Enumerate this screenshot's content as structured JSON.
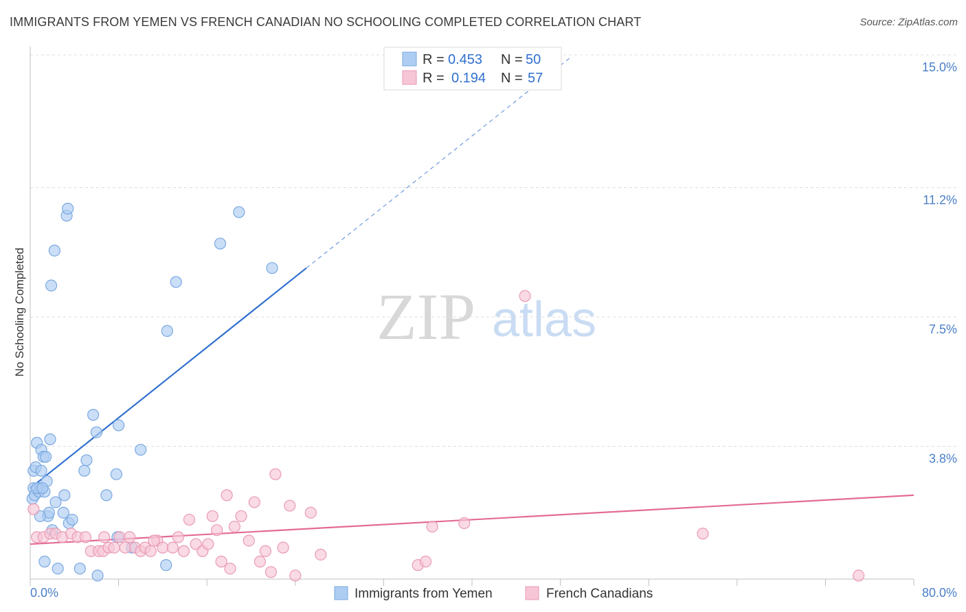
{
  "title": "IMMIGRANTS FROM YEMEN VS FRENCH CANADIAN NO SCHOOLING COMPLETED CORRELATION CHART",
  "source": "Source: ZipAtlas.com",
  "watermark": {
    "zip": "ZIP",
    "atlas": "atlas"
  },
  "colors": {
    "blue_fill": "#aecdf2",
    "blue_stroke": "#7aa8e0",
    "blue_line": "#2f6fd0",
    "pink_fill": "#f7c6d6",
    "pink_stroke": "#e89ab4",
    "pink_line": "#e46a95",
    "axis_text": "#4a7fc8",
    "grid": "#dcdcdc"
  },
  "legend_top": [
    {
      "r_label": "R =",
      "r_value": "0.453",
      "n_label": "N =",
      "n_value": "50"
    },
    {
      "r_label": "R =",
      "r_value": "0.194",
      "n_label": "N =",
      "n_value": "57"
    }
  ],
  "chart_data": {
    "type": "scatter",
    "title": "IMMIGRANTS FROM YEMEN VS FRENCH CANADIAN NO SCHOOLING COMPLETED CORRELATION CHART",
    "xlabel": "",
    "ylabel": "No Schooling Completed",
    "xlim": [
      0,
      80
    ],
    "ylim": [
      0,
      15.0
    ],
    "x_tick_labels": [
      "0.0%",
      "80.0%"
    ],
    "y_ticks": [
      3.8,
      7.5,
      11.2,
      15.0
    ],
    "y_tick_labels": [
      "3.8%",
      "7.5%",
      "11.2%",
      "15.0%"
    ],
    "grid": true,
    "legend_position": "top-center and bottom",
    "series": [
      {
        "name": "Immigrants from Yemen",
        "color": "blue",
        "trend": {
          "x0": 0,
          "y0": 2.6,
          "x1": 25,
          "y1": 8.9,
          "dashed_to_x": 49
        },
        "points": [
          [
            0.2,
            2.3
          ],
          [
            0.3,
            3.1
          ],
          [
            0.3,
            2.6
          ],
          [
            0.4,
            2.4
          ],
          [
            0.5,
            3.2
          ],
          [
            0.6,
            3.9
          ],
          [
            0.8,
            2.5
          ],
          [
            0.9,
            2.6
          ],
          [
            1.0,
            3.7
          ],
          [
            1.0,
            3.1
          ],
          [
            1.2,
            3.5
          ],
          [
            1.3,
            2.5
          ],
          [
            1.4,
            3.5
          ],
          [
            1.5,
            2.8
          ],
          [
            1.6,
            1.8
          ],
          [
            1.7,
            1.9
          ],
          [
            1.8,
            4.0
          ],
          [
            1.9,
            8.4
          ],
          [
            2.0,
            1.4
          ],
          [
            2.2,
            9.4
          ],
          [
            2.3,
            2.2
          ],
          [
            2.5,
            0.3
          ],
          [
            3.0,
            1.9
          ],
          [
            3.1,
            2.4
          ],
          [
            3.3,
            10.4
          ],
          [
            3.4,
            10.6
          ],
          [
            3.5,
            1.6
          ],
          [
            3.8,
            1.7
          ],
          [
            4.5,
            0.3
          ],
          [
            4.9,
            3.1
          ],
          [
            5.1,
            3.4
          ],
          [
            5.7,
            4.7
          ],
          [
            6.0,
            4.2
          ],
          [
            6.1,
            0.1
          ],
          [
            6.9,
            2.4
          ],
          [
            7.8,
            3.0
          ],
          [
            7.9,
            1.2
          ],
          [
            8.0,
            4.4
          ],
          [
            9.2,
            0.9
          ],
          [
            10.0,
            3.7
          ],
          [
            12.3,
            0.4
          ],
          [
            12.4,
            7.1
          ],
          [
            13.2,
            8.5
          ],
          [
            17.2,
            9.6
          ],
          [
            18.9,
            10.5
          ],
          [
            21.9,
            8.9
          ],
          [
            0.6,
            2.6
          ],
          [
            1.1,
            2.6
          ],
          [
            1.3,
            0.5
          ],
          [
            0.9,
            1.8
          ]
        ]
      },
      {
        "name": "French Canadians",
        "color": "pink",
        "trend": {
          "x0": 0,
          "y0": 1.0,
          "x1": 80,
          "y1": 2.4
        },
        "points": [
          [
            0.3,
            2.0
          ],
          [
            0.6,
            1.2
          ],
          [
            1.2,
            1.2
          ],
          [
            1.8,
            1.3
          ],
          [
            2.3,
            1.3
          ],
          [
            2.9,
            1.2
          ],
          [
            3.7,
            1.3
          ],
          [
            4.3,
            1.2
          ],
          [
            5.0,
            1.2
          ],
          [
            5.5,
            0.8
          ],
          [
            6.2,
            0.8
          ],
          [
            6.6,
            0.8
          ],
          [
            7.1,
            0.9
          ],
          [
            7.6,
            0.9
          ],
          [
            8.1,
            1.2
          ],
          [
            8.6,
            0.9
          ],
          [
            9.0,
            1.2
          ],
          [
            9.5,
            0.9
          ],
          [
            10.0,
            0.8
          ],
          [
            10.4,
            0.9
          ],
          [
            10.9,
            0.8
          ],
          [
            11.5,
            1.1
          ],
          [
            12.0,
            0.9
          ],
          [
            12.9,
            0.9
          ],
          [
            13.4,
            1.2
          ],
          [
            13.9,
            0.8
          ],
          [
            14.4,
            1.7
          ],
          [
            15.0,
            1.0
          ],
          [
            15.6,
            0.8
          ],
          [
            16.1,
            1.0
          ],
          [
            16.5,
            1.8
          ],
          [
            16.9,
            1.4
          ],
          [
            17.3,
            0.5
          ],
          [
            17.8,
            2.4
          ],
          [
            18.1,
            0.3
          ],
          [
            18.5,
            1.5
          ],
          [
            19.1,
            1.8
          ],
          [
            19.8,
            1.1
          ],
          [
            20.3,
            2.2
          ],
          [
            20.8,
            0.5
          ],
          [
            21.3,
            0.8
          ],
          [
            21.8,
            0.2
          ],
          [
            22.2,
            3.0
          ],
          [
            22.9,
            0.9
          ],
          [
            23.5,
            2.1
          ],
          [
            24.0,
            0.1
          ],
          [
            25.4,
            1.9
          ],
          [
            26.3,
            0.7
          ],
          [
            35.1,
            0.4
          ],
          [
            35.8,
            0.5
          ],
          [
            36.4,
            1.5
          ],
          [
            39.3,
            1.6
          ],
          [
            44.8,
            8.1
          ],
          [
            60.9,
            1.3
          ],
          [
            75.0,
            0.1
          ],
          [
            6.7,
            1.2
          ],
          [
            11.2,
            1.1
          ]
        ]
      }
    ]
  },
  "bottom_legend": [
    "Immigrants from Yemen",
    "French Canadians"
  ]
}
